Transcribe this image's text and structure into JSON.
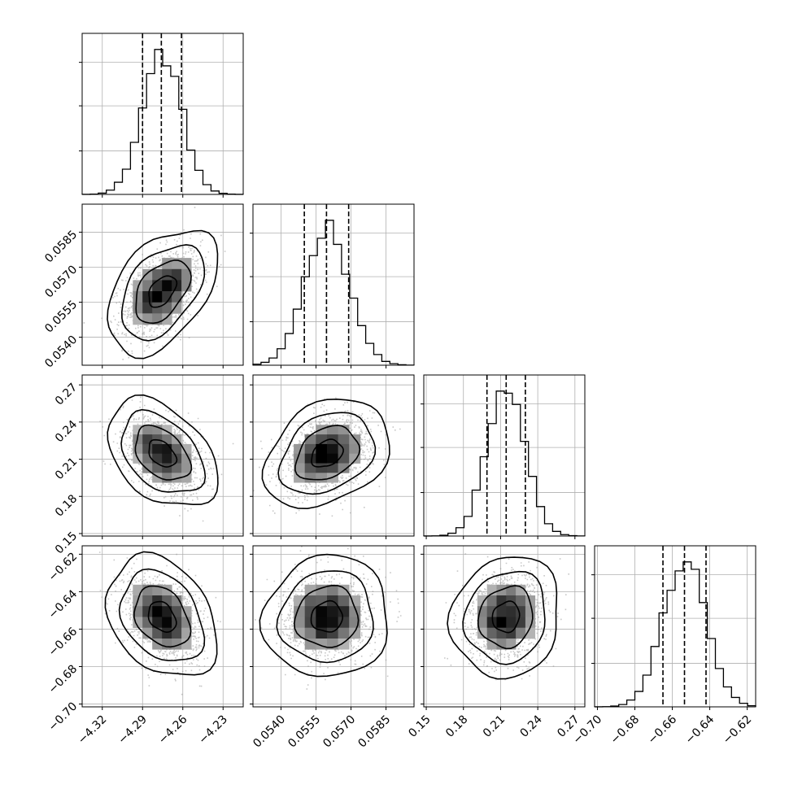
{
  "chart_data": {
    "type": "corner",
    "title": "",
    "grid": true,
    "parameters": [
      {
        "index": 0,
        "range": [
          -4.335,
          -4.215
        ],
        "ticks": [
          -4.32,
          -4.29,
          -4.26,
          -4.23
        ],
        "tick_labels": [
          "−4.32",
          "−4.29",
          "−4.26",
          "−4.23"
        ],
        "mean": -4.2755,
        "sigma": 0.0145,
        "quantiles": [
          -4.29,
          -4.276,
          -4.261
        ]
      },
      {
        "index": 1,
        "range": [
          0.0528,
          0.0597
        ],
        "ticks": [
          0.054,
          0.0555,
          0.057,
          0.0585
        ],
        "tick_labels": [
          "0.0540",
          "0.0555",
          "0.0570",
          "0.0585"
        ],
        "mean": 0.05597,
        "sigma": 0.00095,
        "quantiles": [
          0.055,
          0.05595,
          0.0569
        ]
      },
      {
        "index": 2,
        "range": [
          0.148,
          0.278
        ],
        "ticks": [
          0.15,
          0.18,
          0.21,
          0.24,
          0.27
        ],
        "tick_labels": [
          "0.15",
          "0.18",
          "0.21",
          "0.24",
          "0.27"
        ],
        "mean": 0.2145,
        "sigma": 0.0155,
        "quantiles": [
          0.199,
          0.2145,
          0.23
        ]
      },
      {
        "index": 3,
        "range": [
          -0.7015,
          -0.6155
        ],
        "ticks": [
          -0.7,
          -0.68,
          -0.66,
          -0.64,
          -0.62
        ],
        "tick_labels": [
          "−0.70",
          "−0.68",
          "−0.66",
          "−0.64",
          "−0.62"
        ],
        "mean": -0.6535,
        "sigma": 0.0115,
        "quantiles": [
          -0.665,
          -0.6535,
          -0.642
        ]
      }
    ],
    "correlations": {
      "1-0": 0.45,
      "2-0": -0.4,
      "2-1": 0.3,
      "3-0": -0.3,
      "3-1": 0.05,
      "3-2": 0.1
    },
    "contour_levels_sigma": [
      0.5,
      1.0,
      1.5,
      2.0
    ]
  }
}
